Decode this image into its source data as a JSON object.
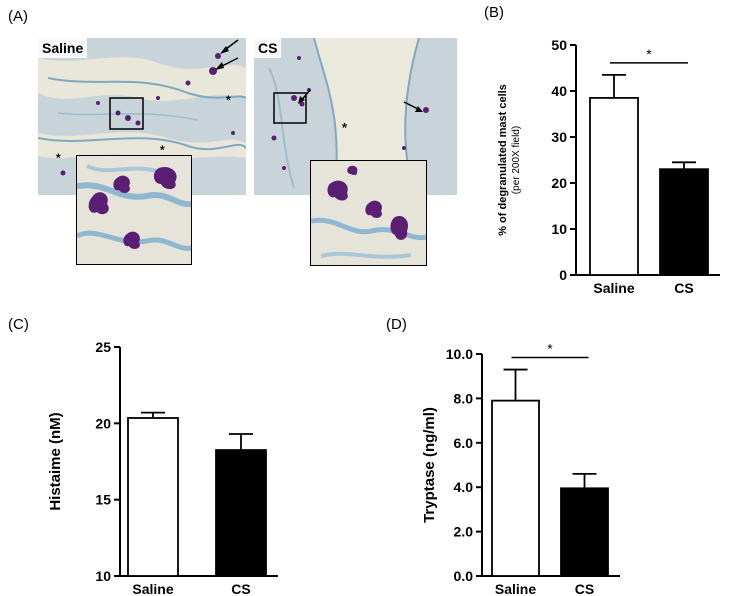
{
  "panels": {
    "a": "(A)",
    "b": "(B)",
    "c": "(C)",
    "d": "(D)"
  },
  "micrographs": {
    "left_label": "Saline",
    "right_label": "CS",
    "asterisk": "*"
  },
  "colors": {
    "stain_purple": "#5a1f72",
    "stain_blue": "#8fb8d0",
    "tissue_bg": "#cfd9e0",
    "lumen_bg": "#ebe8dc"
  },
  "chart_data": [
    {
      "panel": "(B)",
      "type": "bar",
      "categories": [
        "Saline",
        "CS"
      ],
      "values": [
        38.5,
        23.0
      ],
      "errors": [
        5.0,
        1.5
      ],
      "bar_fill": [
        "#ffffff",
        "#000000"
      ],
      "ylabel": "% of degranulated mast cells",
      "ylabel_sub": "(per 200X field)",
      "ylim": [
        0,
        50
      ],
      "yticks": [
        0,
        10,
        20,
        30,
        40,
        50
      ],
      "significance": "*",
      "grid": false
    },
    {
      "panel": "(C)",
      "type": "bar",
      "categories": [
        "Saline",
        "CS"
      ],
      "values": [
        20.35,
        18.25
      ],
      "errors": [
        0.35,
        1.05
      ],
      "bar_fill": [
        "#ffffff",
        "#000000"
      ],
      "ylabel": "Histaime (nM)",
      "ylim": [
        10,
        25
      ],
      "yticks": [
        10,
        15,
        20,
        25
      ],
      "grid": false
    },
    {
      "panel": "(D)",
      "type": "bar",
      "categories": [
        "Saline",
        "CS"
      ],
      "values": [
        7.9,
        3.95
      ],
      "errors": [
        1.4,
        0.65
      ],
      "bar_fill": [
        "#ffffff",
        "#000000"
      ],
      "ylabel": "Tryptase (ng/ml)",
      "ylim": [
        0,
        10
      ],
      "yticks": [
        0,
        2,
        4,
        6,
        8,
        10
      ],
      "tick_format": "fixed1",
      "significance": "*",
      "grid": false
    }
  ]
}
